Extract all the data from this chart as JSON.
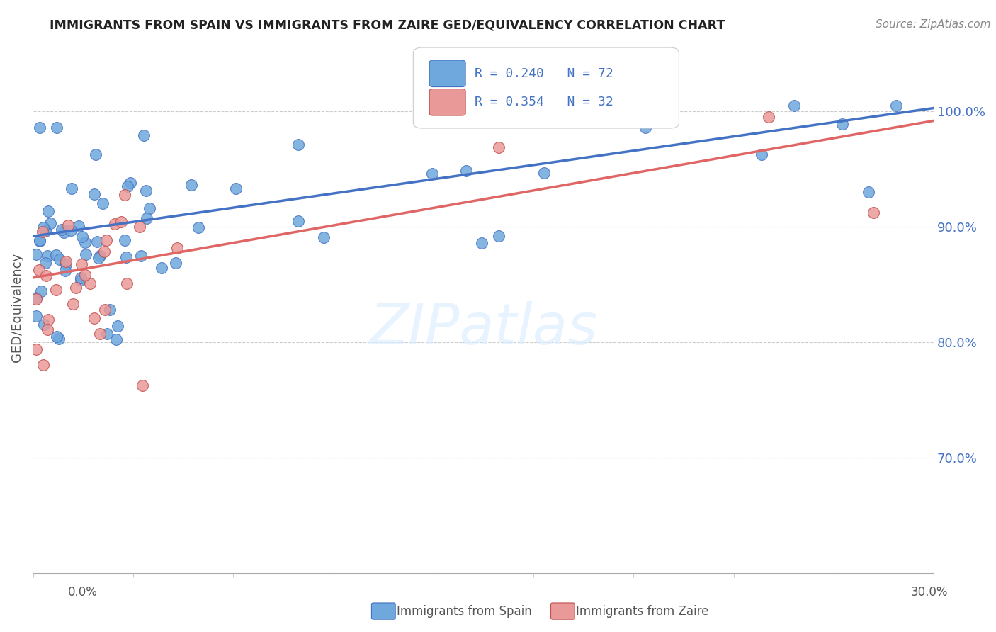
{
  "title": "IMMIGRANTS FROM SPAIN VS IMMIGRANTS FROM ZAIRE GED/EQUIVALENCY CORRELATION CHART",
  "source": "Source: ZipAtlas.com",
  "ylabel": "GED/Equivalency",
  "ytick_values": [
    0.7,
    0.8,
    0.9,
    1.0
  ],
  "xlim": [
    0.0,
    0.3
  ],
  "ylim": [
    0.6,
    1.06
  ],
  "R_spain": 0.24,
  "N_spain": 72,
  "R_zaire": 0.354,
  "N_zaire": 32,
  "color_spain": "#6fa8dc",
  "color_zaire": "#ea9999",
  "color_line_spain": "#4472c4",
  "color_line_zaire": "#e06666",
  "color_axis_right": "#4472c4",
  "spain_line_y0": 0.892,
  "spain_line_y1": 1.003,
  "zaire_line_y0": 0.856,
  "zaire_line_y1": 0.992
}
